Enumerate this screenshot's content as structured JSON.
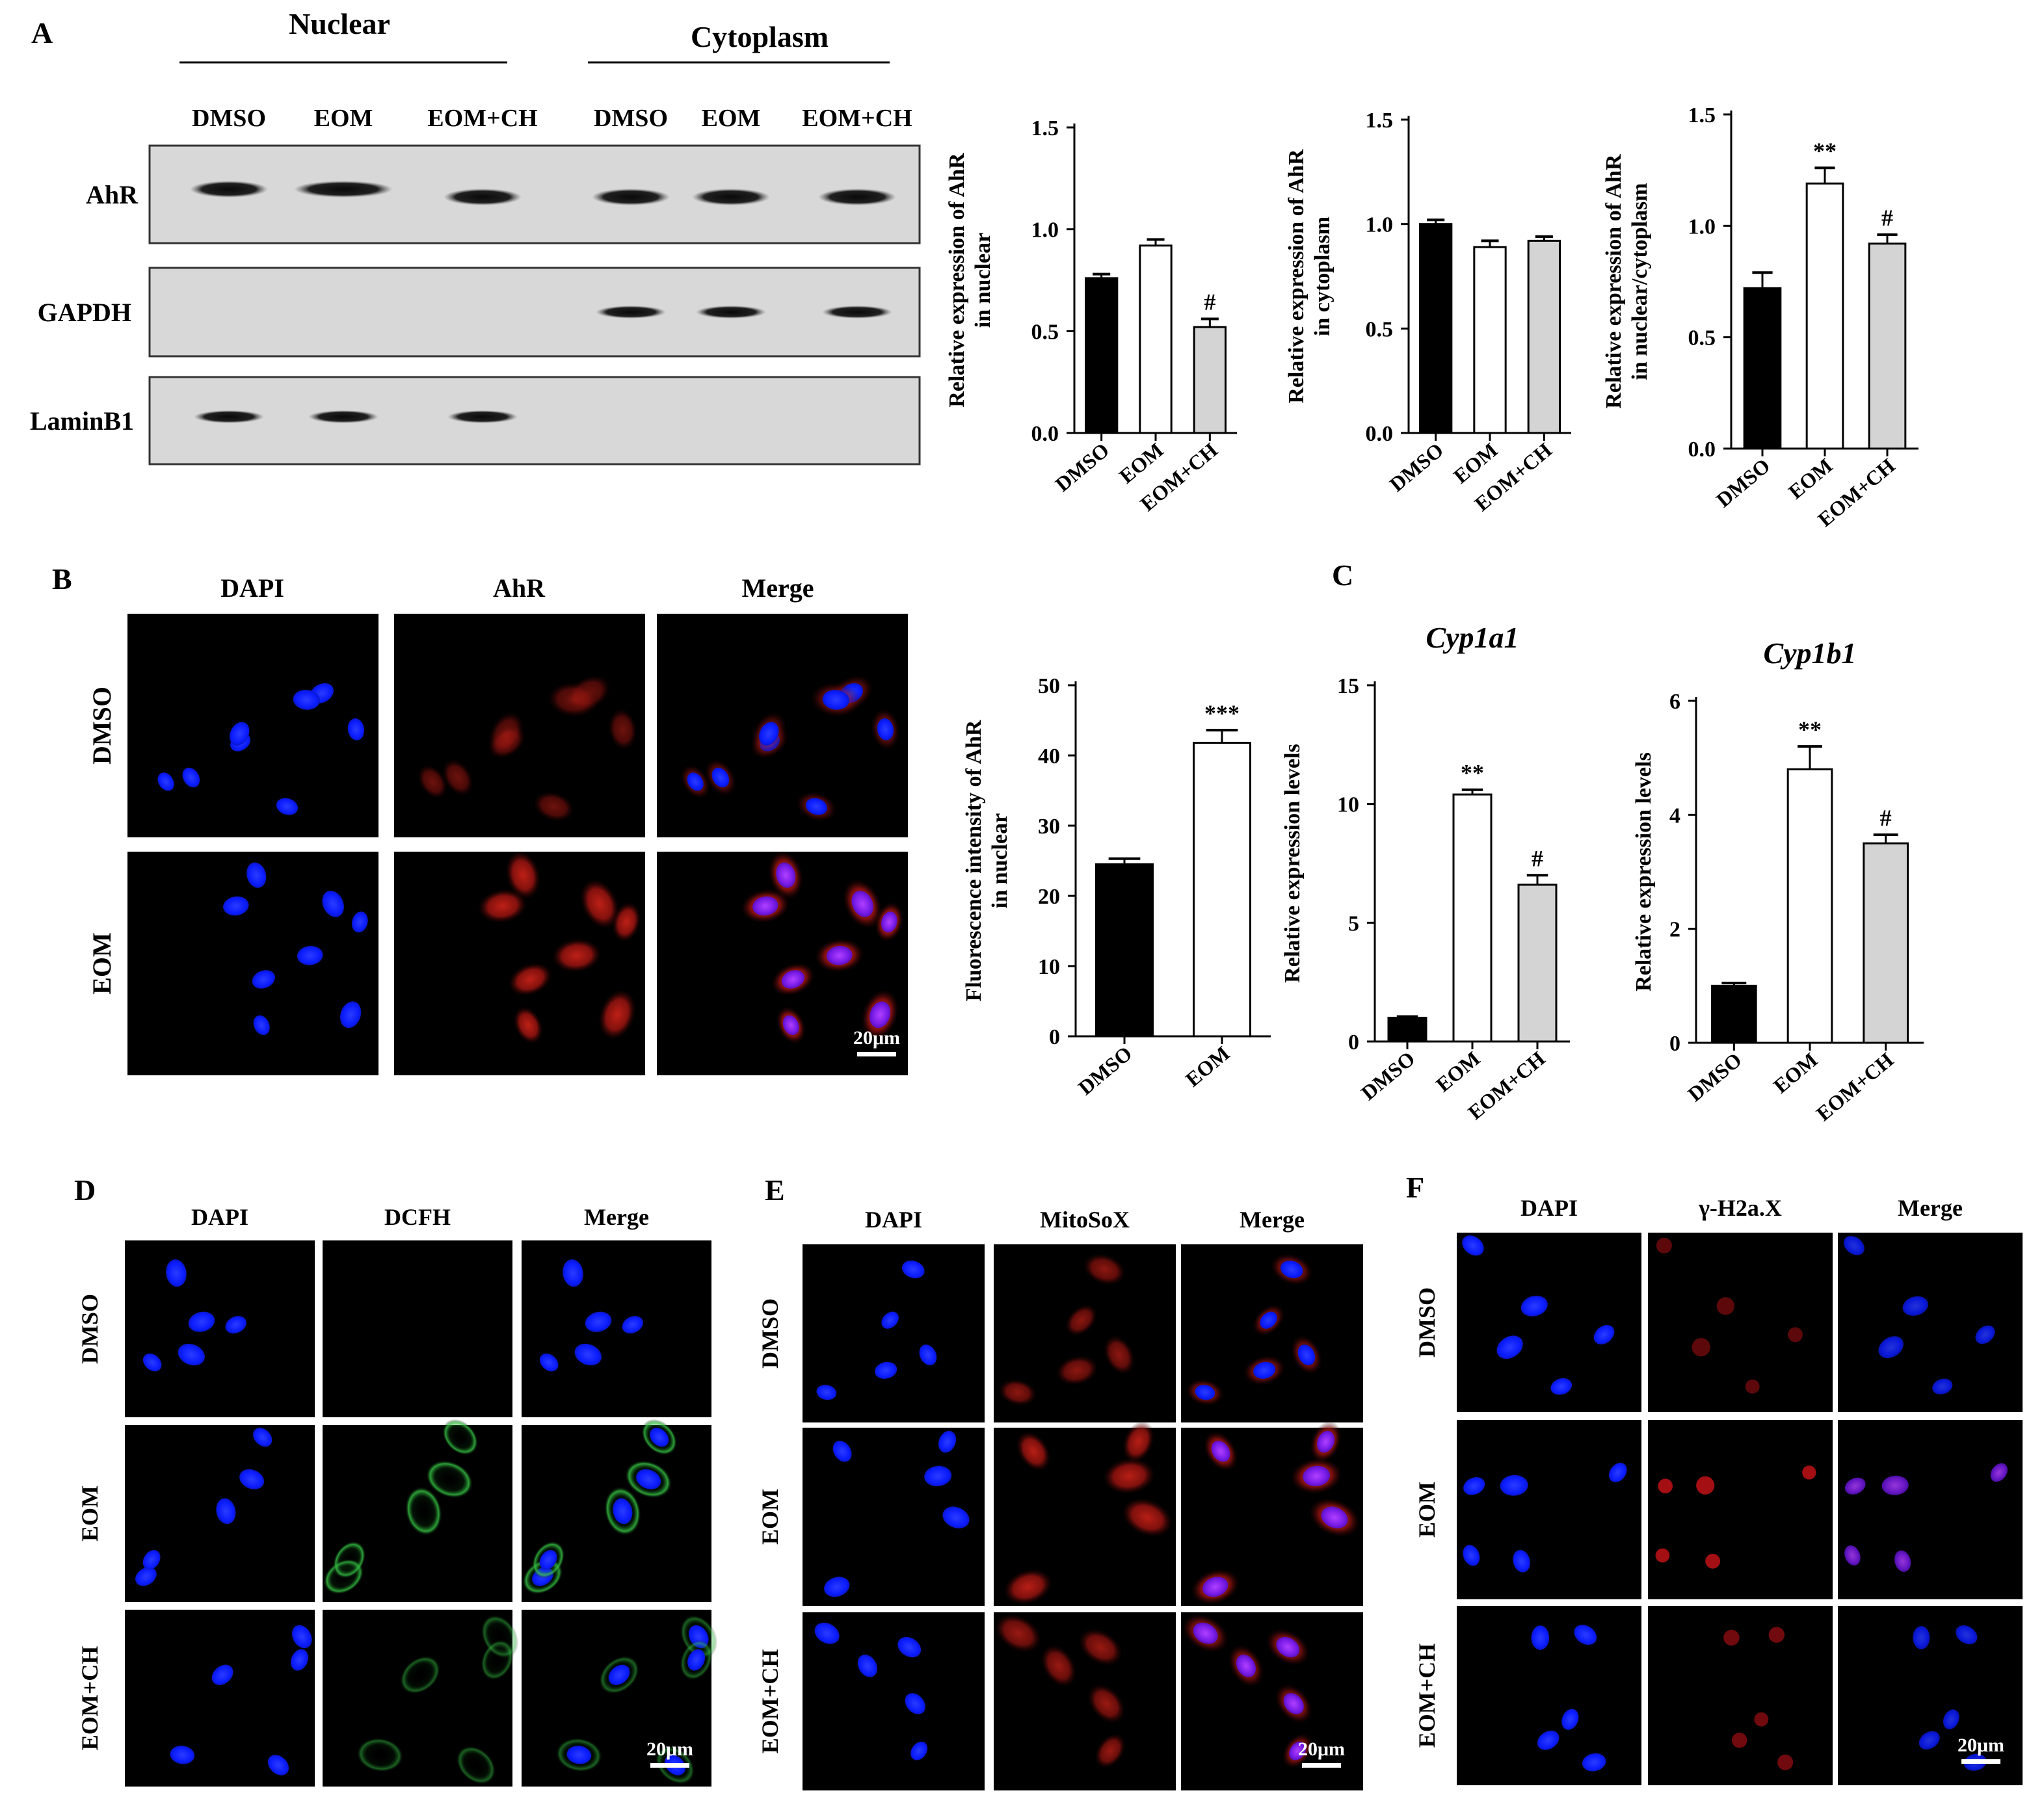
{
  "colors": {
    "dmso": "#000000",
    "eom": "#ffffff",
    "eomch": "#d4d4d4",
    "dapi": "#0b1cff",
    "ahr": "#d81a12",
    "dcfh": "#2fb23a",
    "mitosox": "#c4221a",
    "h2ax": "#d8141a",
    "merge_nuc": "#8a20f0"
  },
  "panel_a": {
    "letter": "A",
    "group_nuclear": "Nuclear",
    "group_cytoplasm": "Cytoplasm",
    "lanes": [
      "DMSO",
      "EOM",
      "EOM+CH",
      "DMSO",
      "EOM",
      "EOM+CH"
    ],
    "blot_rows": [
      {
        "label": "AhR",
        "lanes_present": [
          1,
          1,
          1,
          1,
          1,
          1
        ]
      },
      {
        "label": "GAPDH",
        "lanes_present": [
          0,
          0,
          0,
          1,
          1,
          1
        ]
      },
      {
        "label": "LaminB1",
        "lanes_present": [
          1,
          1,
          1,
          0,
          0,
          0
        ]
      }
    ]
  },
  "panel_b": {
    "letter": "B",
    "columns": [
      "DAPI",
      "AhR",
      "Merge"
    ],
    "rows": [
      "DMSO",
      "EOM"
    ],
    "scale_bar": "20μm",
    "icons": [
      "dapi-nuclei",
      "ahr-red-stain",
      "merge-overlay"
    ]
  },
  "panel_c": {
    "letter": "C"
  },
  "panel_d": {
    "letter": "D",
    "columns": [
      "DAPI",
      "DCFH",
      "Merge"
    ],
    "rows": [
      "DMSO",
      "EOM",
      "EOM+CH"
    ],
    "scale_bar": "20μm"
  },
  "panel_e": {
    "letter": "E",
    "columns": [
      "DAPI",
      "MitoSoX",
      "Merge"
    ],
    "rows": [
      "DMSO",
      "EOM",
      "EOM+CH"
    ],
    "scale_bar": "20μm"
  },
  "panel_f": {
    "letter": "F",
    "columns": [
      "DAPI",
      "γ-H2a.X",
      "Merge"
    ],
    "rows": [
      "DMSO",
      "EOM",
      "EOM+CH"
    ],
    "scale_bar": "20μm"
  },
  "chart_data": [
    {
      "id": "a1",
      "type": "bar",
      "categories": [
        "DMSO",
        "EOM",
        "EOM+CH"
      ],
      "values": [
        0.76,
        0.92,
        0.52
      ],
      "errors": [
        0.02,
        0.03,
        0.04
      ],
      "marks": [
        "",
        "",
        "#"
      ],
      "ylabel": [
        "Relative expression of AhR",
        "in nuclear"
      ],
      "ylim": [
        0,
        1.5
      ],
      "ticks": [
        "0.0",
        "0.5",
        "1.0",
        "1.5"
      ],
      "tick_values": [
        0,
        0.5,
        1.0,
        1.5
      ],
      "title": ""
    },
    {
      "id": "a2",
      "type": "bar",
      "categories": [
        "DMSO",
        "EOM",
        "EOM+CH"
      ],
      "values": [
        1.0,
        0.89,
        0.92
      ],
      "errors": [
        0.02,
        0.03,
        0.02
      ],
      "marks": [
        "",
        "",
        ""
      ],
      "ylabel": [
        "Relative expression of AhR",
        "in cytoplasm"
      ],
      "ylim": [
        0,
        1.5
      ],
      "ticks": [
        "0.0",
        "0.5",
        "1.0",
        "1.5"
      ],
      "tick_values": [
        0,
        0.5,
        1.0,
        1.5
      ],
      "title": ""
    },
    {
      "id": "a3",
      "type": "bar",
      "categories": [
        "DMSO",
        "EOM",
        "EOM+CH"
      ],
      "values": [
        0.72,
        1.19,
        0.92
      ],
      "errors": [
        0.07,
        0.07,
        0.04
      ],
      "marks": [
        "",
        "**",
        "#"
      ],
      "ylabel": [
        "Relative expression of AhR",
        "in nuclear/cytoplasm"
      ],
      "ylim": [
        0,
        1.5
      ],
      "ticks": [
        "0.0",
        "0.5",
        "1.0",
        "1.5"
      ],
      "tick_values": [
        0,
        0.5,
        1.0,
        1.5
      ],
      "title": ""
    },
    {
      "id": "b1",
      "type": "bar",
      "categories": [
        "DMSO",
        "EOM"
      ],
      "values": [
        24.5,
        41.8
      ],
      "errors": [
        0.8,
        1.8
      ],
      "marks": [
        "",
        "***"
      ],
      "ylabel": [
        "Fluorescence intensity of AhR",
        "in nuclear"
      ],
      "ylim": [
        0,
        50
      ],
      "ticks": [
        "0",
        "10",
        "20",
        "30",
        "40",
        "50"
      ],
      "tick_values": [
        0,
        10,
        20,
        30,
        40,
        50
      ],
      "title": ""
    },
    {
      "id": "c1",
      "type": "bar",
      "categories": [
        "DMSO",
        "EOM",
        "EOM+CH"
      ],
      "values": [
        1.0,
        10.4,
        6.6
      ],
      "errors": [
        0.05,
        0.2,
        0.4
      ],
      "marks": [
        "",
        "**",
        "#"
      ],
      "ylabel": [
        "Relative expression levels"
      ],
      "ylim": [
        0,
        15
      ],
      "ticks": [
        "0",
        "5",
        "10",
        "15"
      ],
      "tick_values": [
        0,
        5,
        10,
        15
      ],
      "title": "Cyp1a1"
    },
    {
      "id": "c2",
      "type": "bar",
      "categories": [
        "DMSO",
        "EOM",
        "EOM+CH"
      ],
      "values": [
        1.0,
        4.8,
        3.5
      ],
      "errors": [
        0.05,
        0.4,
        0.15
      ],
      "marks": [
        "",
        "**",
        "#"
      ],
      "ylabel": [
        "Relative expression levels"
      ],
      "ylim": [
        0,
        6
      ],
      "ticks": [
        "0",
        "2",
        "4",
        "6"
      ],
      "tick_values": [
        0,
        2,
        4,
        6
      ],
      "title": "Cyp1b1"
    }
  ]
}
